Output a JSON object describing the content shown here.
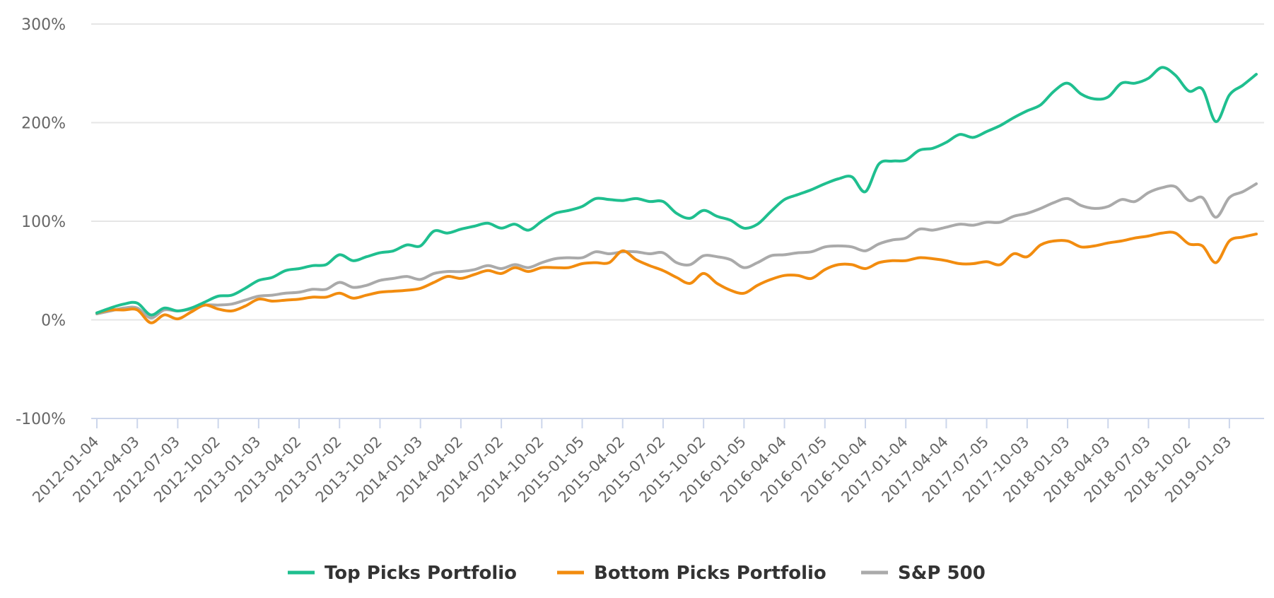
{
  "chart_data": {
    "type": "line",
    "title": "",
    "xlabel": "",
    "ylabel": "",
    "ylim": [
      -100,
      300
    ],
    "y_ticks": [
      "300%",
      "200%",
      "100%",
      "0%",
      "-100%"
    ],
    "y_tick_values": [
      300,
      200,
      100,
      0,
      -100
    ],
    "grid": true,
    "legend_position": "bottom-center",
    "x_tick_labels": [
      "2012-01-04",
      "2012-04-03",
      "2012-07-03",
      "2012-10-02",
      "2013-01-03",
      "2013-04-02",
      "2013-07-02",
      "2013-10-02",
      "2014-01-03",
      "2014-04-02",
      "2014-07-02",
      "2014-10-02",
      "2015-01-05",
      "2015-04-02",
      "2015-07-02",
      "2015-10-02",
      "2016-01-05",
      "2016-04-04",
      "2016-07-05",
      "2016-10-04",
      "2017-01-04",
      "2017-04-04",
      "2017-07-05",
      "2017-10-03",
      "2018-01-03",
      "2018-04-03",
      "2018-07-03",
      "2018-10-02",
      "2019-01-03"
    ],
    "x_start": "2012-01",
    "x_step": "month",
    "series": [
      {
        "name": "Top Picks Portfolio",
        "color": "#1fbf8f",
        "values": [
          7,
          12,
          16,
          17,
          5,
          12,
          9,
          12,
          18,
          24,
          25,
          32,
          40,
          43,
          50,
          52,
          55,
          56,
          66,
          60,
          64,
          68,
          70,
          76,
          75,
          90,
          88,
          92,
          95,
          98,
          93,
          97,
          91,
          100,
          108,
          111,
          115,
          123,
          122,
          121,
          123,
          120,
          120,
          108,
          103,
          111,
          105,
          101,
          93,
          97,
          110,
          122,
          127,
          132,
          138,
          143,
          145,
          130,
          158,
          161,
          162,
          172,
          174,
          180,
          188,
          185,
          191,
          197,
          205,
          212,
          218,
          232,
          240,
          229,
          224,
          226,
          240,
          240,
          245,
          256,
          248,
          232,
          234,
          201,
          228,
          238,
          249
        ]
      },
      {
        "name": "Bottom Picks Portfolio",
        "color": "#f28c0f",
        "values": [
          7,
          10,
          10,
          10,
          -3,
          5,
          1,
          8,
          15,
          11,
          9,
          14,
          21,
          19,
          20,
          21,
          23,
          23,
          27,
          22,
          25,
          28,
          29,
          30,
          32,
          38,
          44,
          42,
          46,
          50,
          47,
          53,
          49,
          53,
          53,
          53,
          57,
          58,
          58,
          70,
          61,
          55,
          50,
          43,
          37,
          47,
          37,
          30,
          27,
          35,
          41,
          45,
          45,
          42,
          51,
          56,
          56,
          52,
          58,
          60,
          60,
          63,
          62,
          60,
          57,
          57,
          59,
          56,
          67,
          64,
          76,
          80,
          80,
          74,
          75,
          78,
          80,
          83,
          85,
          88,
          88,
          77,
          75,
          58,
          80,
          84,
          87
        ]
      },
      {
        "name": "S&P 500",
        "color": "#aaaaaa",
        "values": [
          6,
          9,
          12,
          12,
          2,
          10,
          9,
          11,
          15,
          15,
          16,
          20,
          24,
          25,
          27,
          28,
          31,
          31,
          38,
          33,
          35,
          40,
          42,
          44,
          41,
          47,
          49,
          49,
          51,
          55,
          52,
          56,
          53,
          58,
          62,
          63,
          63,
          69,
          67,
          69,
          69,
          67,
          68,
          58,
          56,
          65,
          64,
          61,
          53,
          58,
          65,
          66,
          68,
          69,
          74,
          75,
          74,
          70,
          77,
          81,
          83,
          92,
          91,
          94,
          97,
          96,
          99,
          99,
          105,
          108,
          113,
          119,
          123,
          116,
          113,
          115,
          122,
          120,
          129,
          134,
          135,
          121,
          124,
          104,
          124,
          130,
          138
        ]
      }
    ]
  }
}
